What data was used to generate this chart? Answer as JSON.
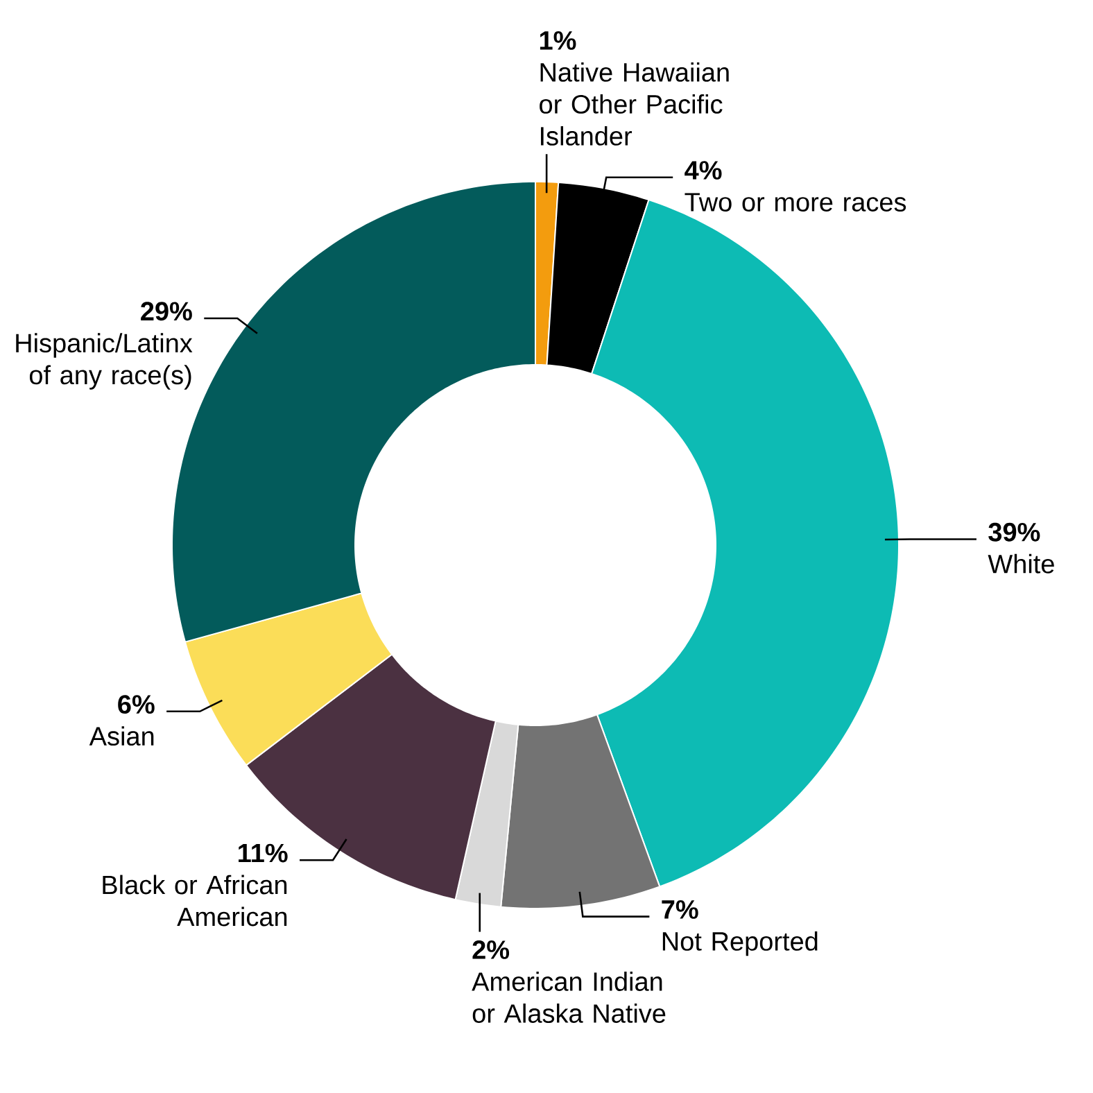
{
  "chart_data": {
    "type": "donut",
    "categories": [
      "Native Hawaiian or Other Pacific Islander",
      "Two or more races",
      "White",
      "Not Reported",
      "American Indian or Alaska Native",
      "Black or African American",
      "Asian",
      "Hispanic/Latinx of any race(s)"
    ],
    "values": [
      1,
      4,
      39,
      7,
      2,
      11,
      6,
      29
    ],
    "value_labels": [
      "1%",
      "4%",
      "39%",
      "7%",
      "2%",
      "11%",
      "6%",
      "29%"
    ],
    "colors": [
      "#f39c0e",
      "#000000",
      "#0dbbb4",
      "#737373",
      "#d9d9d9",
      "#4b3141",
      "#fbdd58",
      "#035b5b"
    ]
  }
}
